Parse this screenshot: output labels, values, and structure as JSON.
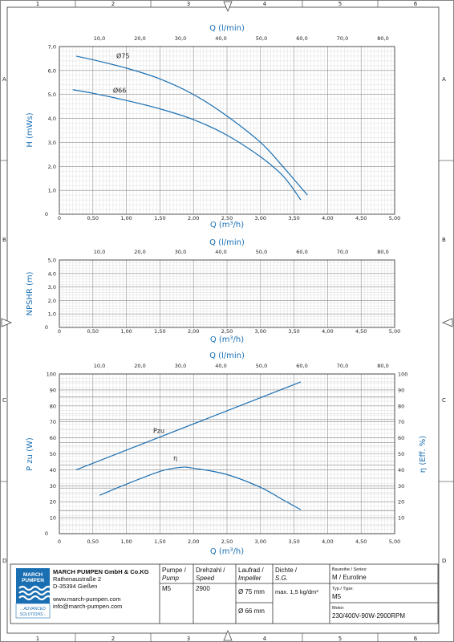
{
  "frame": {
    "col_labels": [
      "1",
      "2",
      "3",
      "4",
      "5",
      "6"
    ],
    "row_labels": [
      "A",
      "B",
      "C",
      "D"
    ]
  },
  "chart_data": [
    {
      "type": "line",
      "top_axis": {
        "label": "Q (l/min)",
        "ticks": [
          "10,0",
          "20,0",
          "30,0",
          "40,0",
          "50,0",
          "60,0",
          "70,0",
          "80,0"
        ]
      },
      "xlabel": "Q (m³/h)",
      "ylabel": "H (mWs)",
      "xlim": [
        0,
        5
      ],
      "ylim": [
        0,
        7
      ],
      "x_ticks": [
        "0",
        "0,50",
        "1,00",
        "1,50",
        "2,00",
        "2,50",
        "3,00",
        "3,50",
        "4,00",
        "4,50",
        "5,00"
      ],
      "y_ticks": [
        "1,0",
        "2,0",
        "3,0",
        "4,0",
        "5,0",
        "6,0",
        "7,0"
      ],
      "grid": true,
      "series": [
        {
          "name": "Ø75",
          "x": [
            0.25,
            0.5,
            1.0,
            1.5,
            2.0,
            2.5,
            3.0,
            3.3,
            3.5,
            3.7
          ],
          "y": [
            6.6,
            6.45,
            6.1,
            5.65,
            5.0,
            4.1,
            3.0,
            2.1,
            1.45,
            0.8
          ]
        },
        {
          "name": "Ø66",
          "x": [
            0.2,
            0.5,
            1.0,
            1.5,
            2.0,
            2.5,
            3.0,
            3.3,
            3.45,
            3.6
          ],
          "y": [
            5.2,
            5.05,
            4.75,
            4.4,
            3.95,
            3.3,
            2.4,
            1.7,
            1.2,
            0.6
          ]
        }
      ]
    },
    {
      "type": "line",
      "top_axis": {
        "label": "Q (l/min)",
        "ticks": [
          "10,0",
          "20,0",
          "30,0",
          "40,0",
          "50,0",
          "60,0",
          "70,0",
          "80,0"
        ]
      },
      "xlabel": "Q (m³/h)",
      "ylabel": "NPSHR (m)",
      "xlim": [
        0,
        5
      ],
      "ylim": [
        0,
        5
      ],
      "x_ticks": [
        "0",
        "0,50",
        "1,00",
        "1,50",
        "2,00",
        "2,50",
        "3,00",
        "3,50",
        "4,00",
        "4,50",
        "5,00"
      ],
      "y_ticks": [
        "1,0",
        "2,0",
        "3,0",
        "4,0",
        "5,0"
      ],
      "grid": true,
      "series": []
    },
    {
      "type": "line",
      "top_axis": {
        "label": "Q (l/min)",
        "ticks": [
          "10,0",
          "20,0",
          "30,0",
          "40,0",
          "50,0",
          "60,0",
          "70,0",
          "80,0"
        ]
      },
      "xlabel": "Q (m³/h)",
      "ylabel": "P zu (W)",
      "ylabel_right": "η (Eff. %)",
      "xlim": [
        0,
        5
      ],
      "ylim": [
        0,
        100
      ],
      "x_ticks": [
        "0",
        "0,50",
        "1,00",
        "1,50",
        "2,00",
        "2,50",
        "3,00",
        "3,50",
        "4,00",
        "4,50",
        "5,00"
      ],
      "y_ticks": [
        "10",
        "20",
        "30",
        "40",
        "50",
        "60",
        "70",
        "80",
        "90",
        "100"
      ],
      "grid": true,
      "series": [
        {
          "name": "Pzu",
          "x": [
            0.25,
            3.6
          ],
          "y": [
            40,
            95
          ]
        },
        {
          "name": "η",
          "x": [
            0.6,
            1.0,
            1.5,
            1.8,
            2.0,
            2.5,
            3.0,
            3.3,
            3.6
          ],
          "y": [
            24,
            31,
            39,
            41.5,
            41,
            37,
            29,
            22,
            15
          ]
        }
      ]
    }
  ],
  "footer": {
    "logo": {
      "line1": "MARCH",
      "line2": "PUMPEN",
      "tagline1": "...ADVANCED",
      "tagline2": "SOLUTIONS..."
    },
    "company": "MARCH PUMPEN GmbH & Co.KG",
    "street": "Rathenaustraße 2",
    "city": "D-35394 Gießen",
    "web": "www.march-pumpen.com",
    "email": "info@march-pumpen.com",
    "pumpe_de": "Pumpe /",
    "pumpe_en": "Pump",
    "pumpe_val": "M5",
    "drehzahl_de": "Drehzahl /",
    "drehzahl_en": "Speed",
    "drehzahl_val": "2900",
    "laufrad_de": "Laufrad /",
    "laufrad_en": "Impeller",
    "laufrad_val1": "Ø 75 mm",
    "laufrad_val2": "Ø 66 mm",
    "dichte_de": "Dichte /",
    "dichte_en": "S.G.",
    "dichte_val": "max. 1,5 kg/dm³",
    "series_label": "Baureihe / Series:",
    "series_val": "M / Euroline",
    "type_label": "Typ / Type:",
    "type_val": "M5",
    "motor_label": "Motor:",
    "motor_val": "230/400V-90W-2900RPM"
  }
}
